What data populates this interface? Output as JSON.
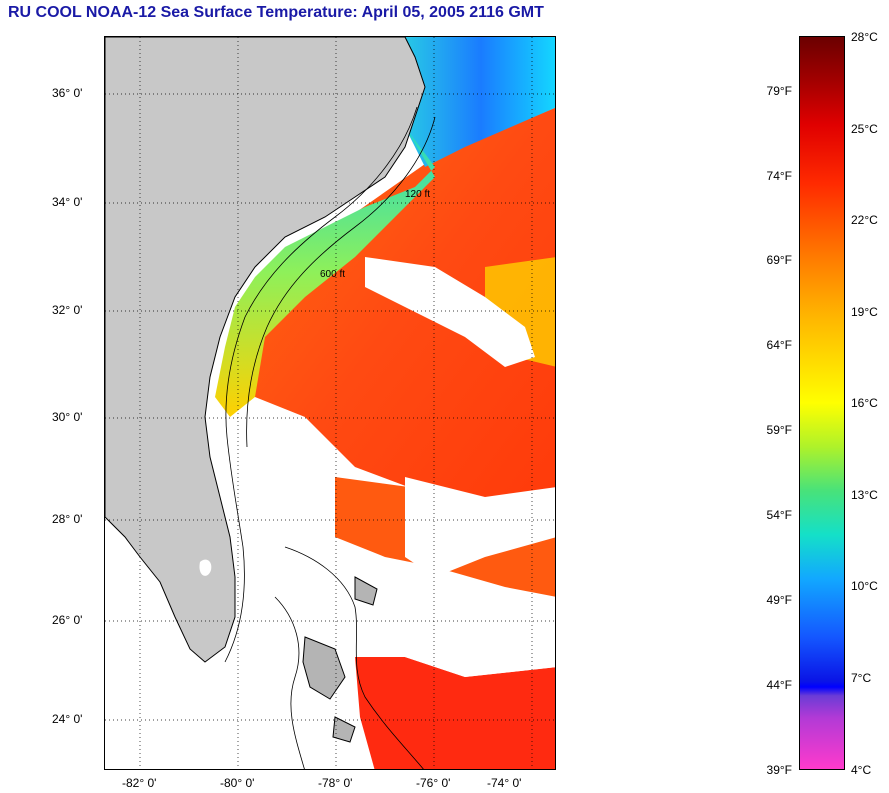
{
  "title": "RU COOL  NOAA-12  Sea Surface Temperature:  April 05, 2005 2116 GMT",
  "map": {
    "lat_labels": [
      "36° 0'",
      "34° 0'",
      "32° 0'",
      "30° 0'",
      "28° 0'",
      "26° 0'",
      "24° 0'"
    ],
    "lon_labels": [
      "-82° 0'",
      "-80° 0'",
      "-78° 0'",
      "-76° 0'",
      "-74° 0'"
    ],
    "contour_labels": [
      "120 ft",
      "600 ft"
    ]
  },
  "colorbar": {
    "celsius": [
      "28°C",
      "25°C",
      "22°C",
      "19°C",
      "16°C",
      "13°C",
      "10°C",
      "7°C",
      "4°C"
    ],
    "fahrenheit": [
      "79°F",
      "74°F",
      "69°F",
      "64°F",
      "59°F",
      "54°F",
      "49°F",
      "44°F",
      "39°F"
    ]
  },
  "colors": {
    "title": "#1a1aa6",
    "land": "#c8c8c8",
    "cloud_or_nodata": "#ffffff",
    "warm_water": "#ff3a10",
    "cool_water": "#2aa0ff"
  }
}
